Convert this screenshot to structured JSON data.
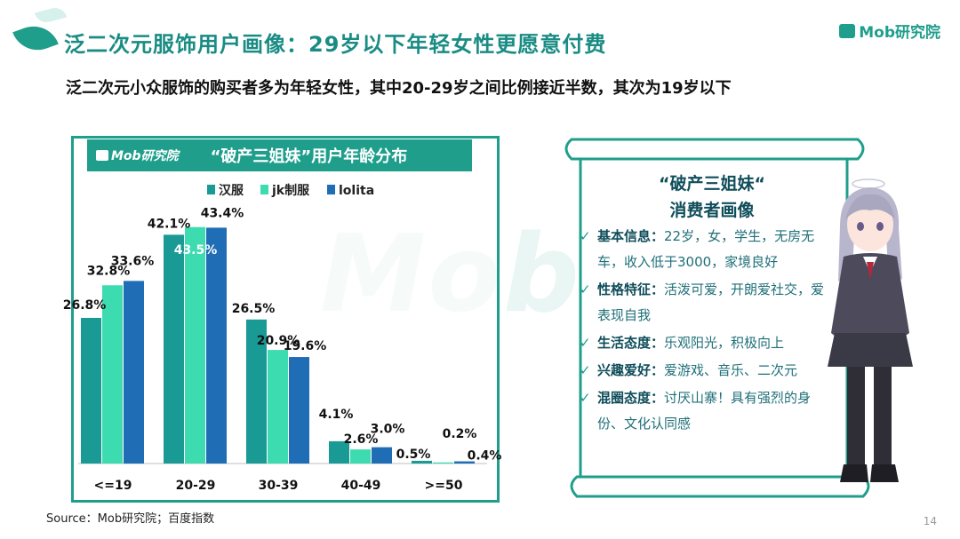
{
  "header": {
    "title": "泛二次元服饰用户画像：29岁以下年轻女性更愿意付费",
    "subtitle": "泛二次元小众服饰的购买者多为年轻女性，其中20-29岁之间比例接近半数，其次为19岁以下",
    "brand": "Mob研究院"
  },
  "watermark": "Mob",
  "chart_header": {
    "logo": "Mob研究院",
    "title": "“破产三姐妹”用户年龄分布"
  },
  "chart_data": {
    "type": "bar",
    "title": "“破产三姐妹”用户年龄分布",
    "categories": [
      "<=19",
      "20-29",
      "30-39",
      "40-49",
      ">=50"
    ],
    "series": [
      {
        "name": "汉服",
        "values": [
          26.8,
          42.1,
          26.5,
          4.1,
          0.5
        ],
        "labels": [
          "26.8%",
          "42.1%",
          "26.5%",
          "4.1%",
          "0.5%"
        ]
      },
      {
        "name": "jk制服",
        "values": [
          32.8,
          43.5,
          20.9,
          2.6,
          0.2
        ],
        "labels": [
          "32.8%",
          "43.5%",
          "20.9%",
          "2.6%",
          "0.2%"
        ]
      },
      {
        "name": "lolita",
        "values": [
          33.6,
          43.4,
          19.6,
          3.0,
          0.4
        ],
        "labels": [
          "33.6%",
          "43.4%",
          "19.6%",
          "3.0%",
          "0.4%"
        ]
      }
    ],
    "ylim": [
      0,
      50
    ],
    "legend": "top",
    "grid": false
  },
  "colors": {
    "accent": "#1f9e8c",
    "series": [
      "#1a9a95",
      "#3ddbb0",
      "#1f6db5"
    ],
    "dark_text": "#0f4d5a"
  },
  "panel": {
    "title_line1": "“破产三姐妹“",
    "title_line2": "消费者画像",
    "traits": [
      {
        "label": "基本信息：",
        "text": "22岁，女，学生，无房无车，收入低于3000，家境良好"
      },
      {
        "label": "性格特征：",
        "text": "活泼可爱，开朗爱社交，爱表现自我"
      },
      {
        "label": "生活态度：",
        "text": "乐观阳光，积极向上"
      },
      {
        "label": "兴趣爱好：",
        "text": "爱游戏、音乐、二次元"
      },
      {
        "label": "混圈态度：",
        "text": "讨厌山寨！具有强烈的身份、文化认同感"
      }
    ]
  },
  "footer": {
    "source": "Source：Mob研究院；百度指数",
    "page": "14"
  }
}
